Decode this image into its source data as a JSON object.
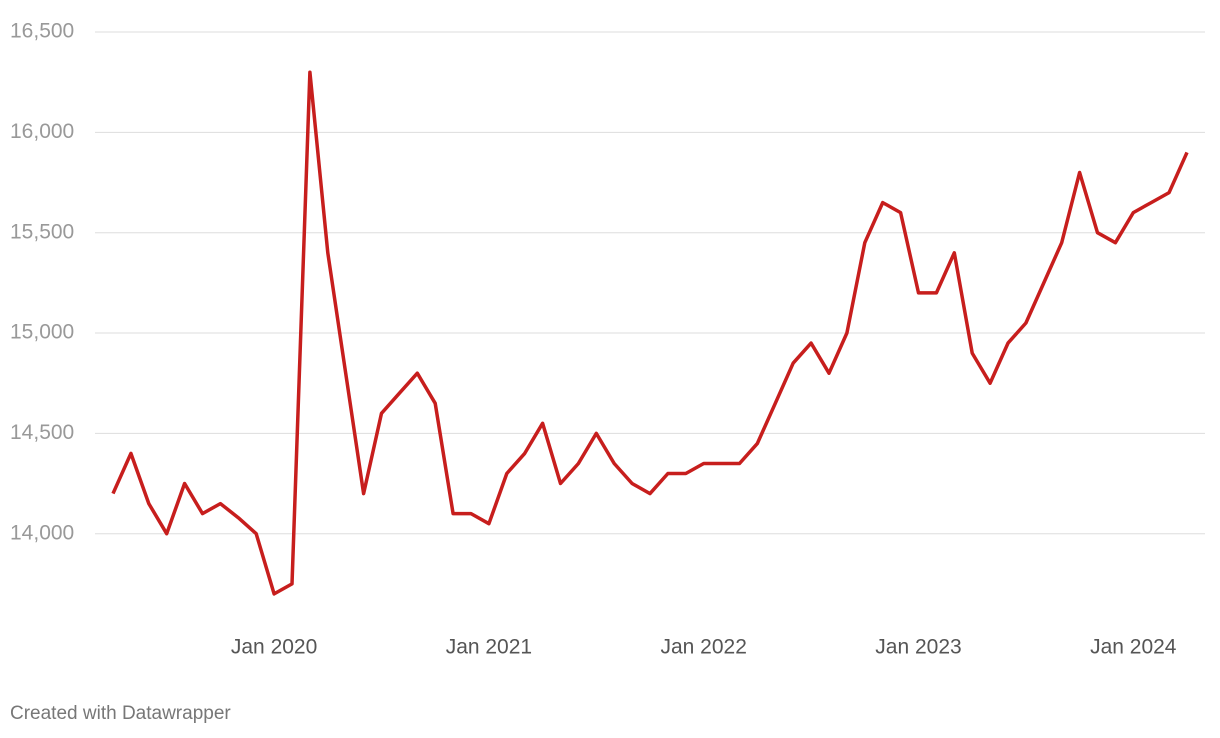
{
  "chart_data": {
    "type": "line",
    "x": [
      "2019-04",
      "2019-05",
      "2019-06",
      "2019-07",
      "2019-08",
      "2019-09",
      "2019-10",
      "2019-11",
      "2019-12",
      "2020-01",
      "2020-02",
      "2020-03",
      "2020-04",
      "2020-05",
      "2020-06",
      "2020-07",
      "2020-08",
      "2020-09",
      "2020-10",
      "2020-11",
      "2020-12",
      "2021-01",
      "2021-02",
      "2021-03",
      "2021-04",
      "2021-05",
      "2021-06",
      "2021-07",
      "2021-08",
      "2021-09",
      "2021-10",
      "2021-11",
      "2021-12",
      "2022-01",
      "2022-02",
      "2022-03",
      "2022-04",
      "2022-05",
      "2022-06",
      "2022-07",
      "2022-08",
      "2022-09",
      "2022-10",
      "2022-11",
      "2022-12",
      "2023-01",
      "2023-02",
      "2023-03",
      "2023-04",
      "2023-05",
      "2023-06",
      "2023-07",
      "2023-08",
      "2023-09",
      "2023-10",
      "2023-11",
      "2023-12",
      "2024-01",
      "2024-02",
      "2024-03",
      "2024-04"
    ],
    "series": [
      {
        "color": "#c71e1d",
        "values": [
          14200,
          14400,
          14150,
          14000,
          14250,
          14100,
          14150,
          14080,
          14000,
          13700,
          13750,
          16300,
          15400,
          14800,
          14200,
          14600,
          14700,
          14800,
          14650,
          14100,
          14100,
          14050,
          14300,
          14400,
          14550,
          14250,
          14350,
          14500,
          14350,
          14250,
          14200,
          14300,
          14300,
          14350,
          14350,
          14350,
          14450,
          14650,
          14850,
          14950,
          14800,
          15000,
          15450,
          15650,
          15600,
          15200,
          15200,
          15400,
          14900,
          14750,
          14950,
          15050,
          15250,
          15450,
          15800,
          15500,
          15450,
          15600,
          15650,
          15700,
          15900
        ]
      }
    ],
    "xlim": [
      "2019-04",
      "2024-04"
    ],
    "xticks": [
      {
        "value": "2020-01",
        "label": "Jan 2020"
      },
      {
        "value": "2021-01",
        "label": "Jan 2021"
      },
      {
        "value": "2022-01",
        "label": "Jan 2022"
      },
      {
        "value": "2023-01",
        "label": "Jan 2023"
      },
      {
        "value": "2024-01",
        "label": "Jan 2024"
      }
    ],
    "ylim": [
      13560,
      16560
    ],
    "yticks": [
      {
        "value": 14000,
        "label": "14,000"
      },
      {
        "value": 14500,
        "label": "14,500"
      },
      {
        "value": 15000,
        "label": "15,000"
      },
      {
        "value": 15500,
        "label": "15,500"
      },
      {
        "value": 16000,
        "label": "16,000"
      },
      {
        "value": 16500,
        "label": "16,500"
      }
    ],
    "grid": true,
    "footer": "Created with Datawrapper"
  }
}
